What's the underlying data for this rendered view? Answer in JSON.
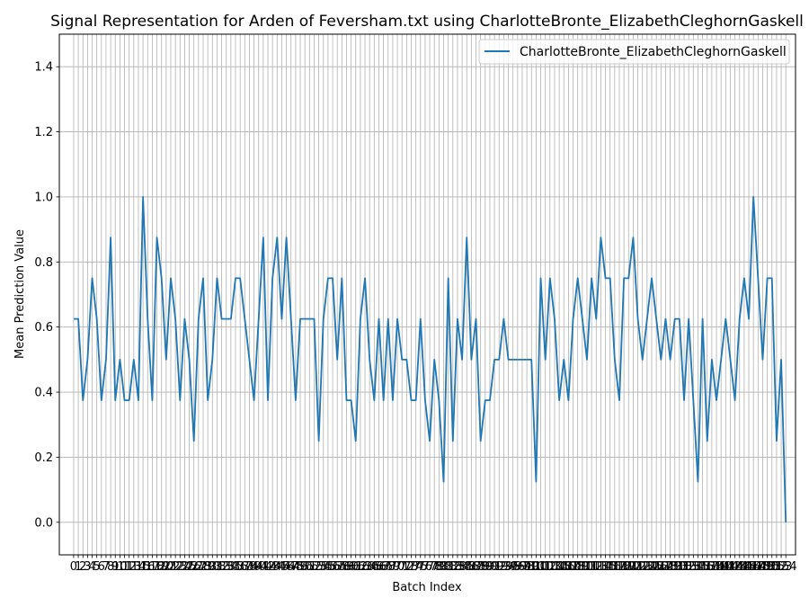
{
  "chart_data": {
    "type": "line",
    "title": "Signal Representation for Arden of Feversham.txt using CharlotteBronte_ElizabethCleghornGaskell",
    "xlabel": "Batch Index",
    "ylabel": "Mean Prediction Value",
    "xlim": [
      -3.1,
      156.1
    ],
    "ylim": [
      -0.1,
      1.5
    ],
    "yticks": [
      0.0,
      0.2,
      0.4,
      0.6,
      0.8,
      1.0,
      1.2,
      1.4
    ],
    "ytick_labels": [
      "0.0",
      "0.2",
      "0.4",
      "0.6",
      "0.8",
      "1.0",
      "1.2",
      "1.4"
    ],
    "grid": true,
    "legend_position": "top-right",
    "series": [
      {
        "name": "CharlotteBronte_ElizabethCleghornGaskell",
        "color": "#1f77b4",
        "values": [
          0.625,
          0.625,
          0.375,
          0.5,
          0.75,
          0.625,
          0.375,
          0.5,
          0.875,
          0.375,
          0.5,
          0.375,
          0.375,
          0.5,
          0.375,
          1.0,
          0.625,
          0.375,
          0.875,
          0.75,
          0.5,
          0.75,
          0.625,
          0.375,
          0.625,
          0.5,
          0.25,
          0.625,
          0.75,
          0.375,
          0.5,
          0.75,
          0.625,
          0.625,
          0.625,
          0.75,
          0.75,
          0.625,
          0.5,
          0.375,
          0.625,
          0.875,
          0.375,
          0.75,
          0.875,
          0.625,
          0.875,
          0.625,
          0.375,
          0.625,
          0.625,
          0.625,
          0.625,
          0.25,
          0.625,
          0.75,
          0.75,
          0.5,
          0.75,
          0.375,
          0.375,
          0.25,
          0.625,
          0.75,
          0.5,
          0.375,
          0.625,
          0.375,
          0.625,
          0.375,
          0.625,
          0.5,
          0.5,
          0.375,
          0.375,
          0.625,
          0.375,
          0.25,
          0.5,
          0.375,
          0.125,
          0.75,
          0.25,
          0.625,
          0.5,
          0.875,
          0.5,
          0.625,
          0.25,
          0.375,
          0.375,
          0.5,
          0.5,
          0.625,
          0.5,
          0.5,
          0.5,
          0.5,
          0.5,
          0.5,
          0.125,
          0.75,
          0.5,
          0.75,
          0.625,
          0.375,
          0.5,
          0.375,
          0.625,
          0.75,
          0.625,
          0.5,
          0.75,
          0.625,
          0.875,
          0.75,
          0.75,
          0.5,
          0.375,
          0.75,
          0.75,
          0.875,
          0.625,
          0.5,
          0.625,
          0.75,
          0.625,
          0.5,
          0.625,
          0.5,
          0.625,
          0.625,
          0.375,
          0.625,
          0.375,
          0.125,
          0.625,
          0.25,
          0.5,
          0.375,
          0.5,
          0.625,
          0.5,
          0.375,
          0.625,
          0.75,
          0.625,
          1.0,
          0.75,
          0.5,
          0.75,
          0.75,
          0.25,
          0.5,
          0.0
        ]
      }
    ]
  }
}
